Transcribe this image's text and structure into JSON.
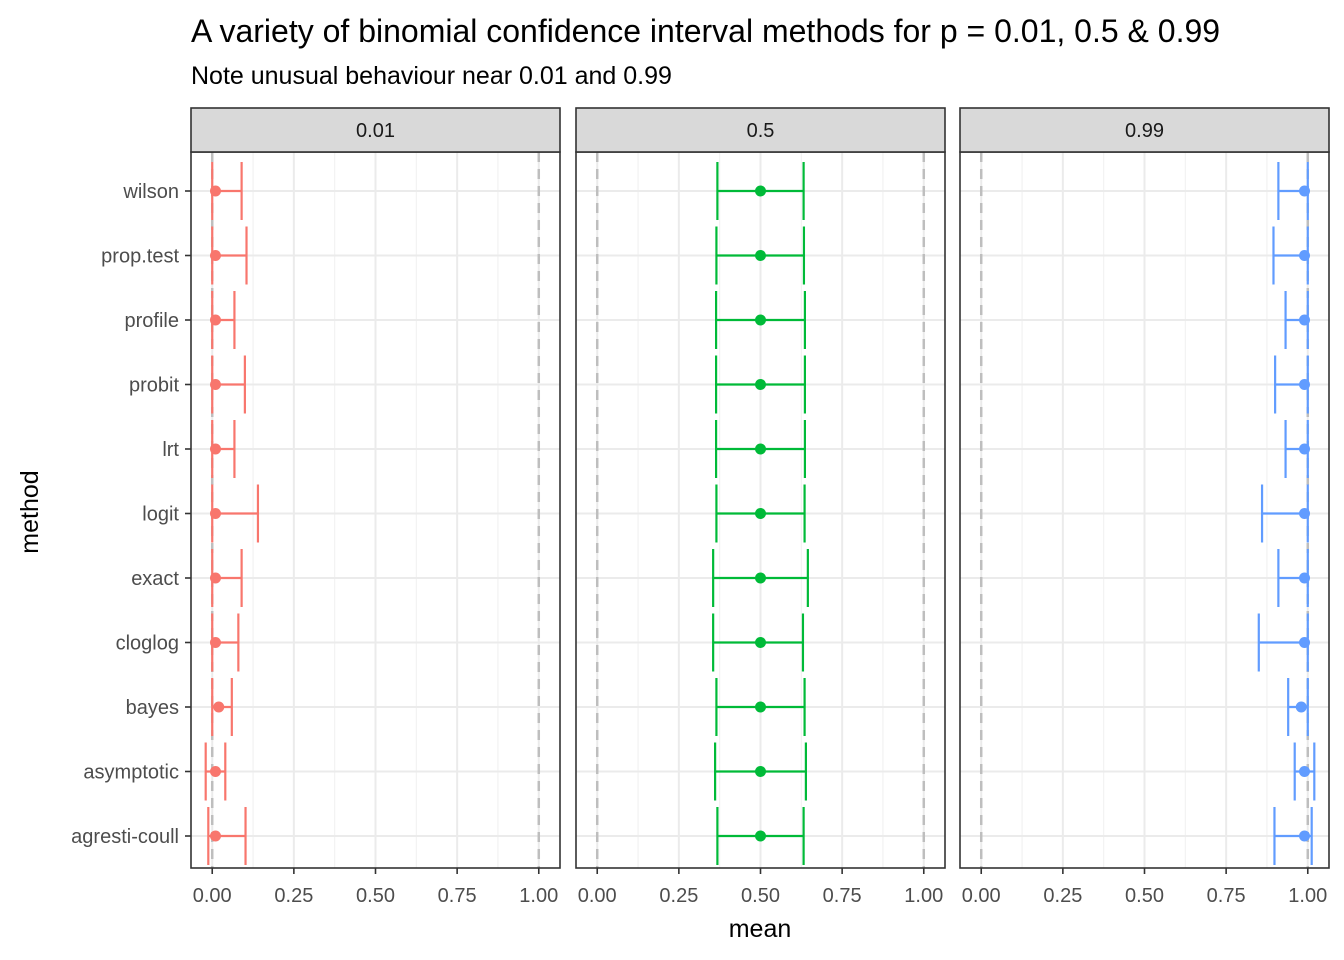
{
  "chart_data": {
    "type": "errorbar",
    "title": "A variety of binomial confidence interval methods for p = 0.01, 0.5 & 0.99",
    "subtitle": "Note unusual behaviour near 0.01 and 0.99",
    "xlabel": "mean",
    "ylabel": "method",
    "xlim": [
      -0.065,
      1.065
    ],
    "x_ticks": [
      "0.00",
      "0.25",
      "0.50",
      "0.75",
      "1.00"
    ],
    "x_tick_values": [
      0,
      0.25,
      0.5,
      0.75,
      1.0
    ],
    "reference_lines": [
      0,
      1
    ],
    "grid": true,
    "methods": [
      "wilson",
      "prop.test",
      "profile",
      "probit",
      "lrt",
      "logit",
      "exact",
      "cloglog",
      "bayes",
      "asymptotic",
      "agresti-coull"
    ],
    "panels": [
      {
        "label": "0.01",
        "color": "#F8766D",
        "series": [
          {
            "method": "wilson",
            "mean": 0.01,
            "lower": 0.0,
            "upper": 0.09
          },
          {
            "method": "prop.test",
            "mean": 0.01,
            "lower": 0.0,
            "upper": 0.105
          },
          {
            "method": "profile",
            "mean": 0.01,
            "lower": 0.0,
            "upper": 0.068
          },
          {
            "method": "probit",
            "mean": 0.01,
            "lower": 0.0,
            "upper": 0.1
          },
          {
            "method": "lrt",
            "mean": 0.01,
            "lower": 0.0,
            "upper": 0.068
          },
          {
            "method": "logit",
            "mean": 0.01,
            "lower": 0.0,
            "upper": 0.14
          },
          {
            "method": "exact",
            "mean": 0.01,
            "lower": 0.0,
            "upper": 0.09
          },
          {
            "method": "cloglog",
            "mean": 0.01,
            "lower": 0.0,
            "upper": 0.08
          },
          {
            "method": "bayes",
            "mean": 0.02,
            "lower": 0.0,
            "upper": 0.06
          },
          {
            "method": "asymptotic",
            "mean": 0.01,
            "lower": -0.02,
            "upper": 0.04
          },
          {
            "method": "agresti-coull",
            "mean": 0.01,
            "lower": -0.012,
            "upper": 0.102
          }
        ]
      },
      {
        "label": "0.5",
        "color": "#00BA38",
        "series": [
          {
            "method": "wilson",
            "mean": 0.5,
            "lower": 0.368,
            "upper": 0.632
          },
          {
            "method": "prop.test",
            "mean": 0.5,
            "lower": 0.365,
            "upper": 0.633
          },
          {
            "method": "profile",
            "mean": 0.5,
            "lower": 0.364,
            "upper": 0.636
          },
          {
            "method": "probit",
            "mean": 0.5,
            "lower": 0.364,
            "upper": 0.636
          },
          {
            "method": "lrt",
            "mean": 0.5,
            "lower": 0.364,
            "upper": 0.636
          },
          {
            "method": "logit",
            "mean": 0.5,
            "lower": 0.365,
            "upper": 0.635
          },
          {
            "method": "exact",
            "mean": 0.5,
            "lower": 0.355,
            "upper": 0.645
          },
          {
            "method": "cloglog",
            "mean": 0.5,
            "lower": 0.355,
            "upper": 0.63
          },
          {
            "method": "bayes",
            "mean": 0.5,
            "lower": 0.365,
            "upper": 0.635
          },
          {
            "method": "asymptotic",
            "mean": 0.5,
            "lower": 0.361,
            "upper": 0.639
          },
          {
            "method": "agresti-coull",
            "mean": 0.5,
            "lower": 0.368,
            "upper": 0.632
          }
        ]
      },
      {
        "label": "0.99",
        "color": "#619CFF",
        "series": [
          {
            "method": "wilson",
            "mean": 0.99,
            "lower": 0.91,
            "upper": 1.0
          },
          {
            "method": "prop.test",
            "mean": 0.99,
            "lower": 0.895,
            "upper": 1.0
          },
          {
            "method": "profile",
            "mean": 0.99,
            "lower": 0.932,
            "upper": 1.0
          },
          {
            "method": "probit",
            "mean": 0.99,
            "lower": 0.9,
            "upper": 1.0
          },
          {
            "method": "lrt",
            "mean": 0.99,
            "lower": 0.932,
            "upper": 1.0
          },
          {
            "method": "logit",
            "mean": 0.99,
            "lower": 0.86,
            "upper": 1.0
          },
          {
            "method": "exact",
            "mean": 0.99,
            "lower": 0.91,
            "upper": 1.0
          },
          {
            "method": "cloglog",
            "mean": 0.99,
            "lower": 0.85,
            "upper": 1.0
          },
          {
            "method": "bayes",
            "mean": 0.98,
            "lower": 0.94,
            "upper": 1.0
          },
          {
            "method": "asymptotic",
            "mean": 0.99,
            "lower": 0.96,
            "upper": 1.02
          },
          {
            "method": "agresti-coull",
            "mean": 0.99,
            "lower": 0.898,
            "upper": 1.012
          }
        ]
      }
    ]
  }
}
